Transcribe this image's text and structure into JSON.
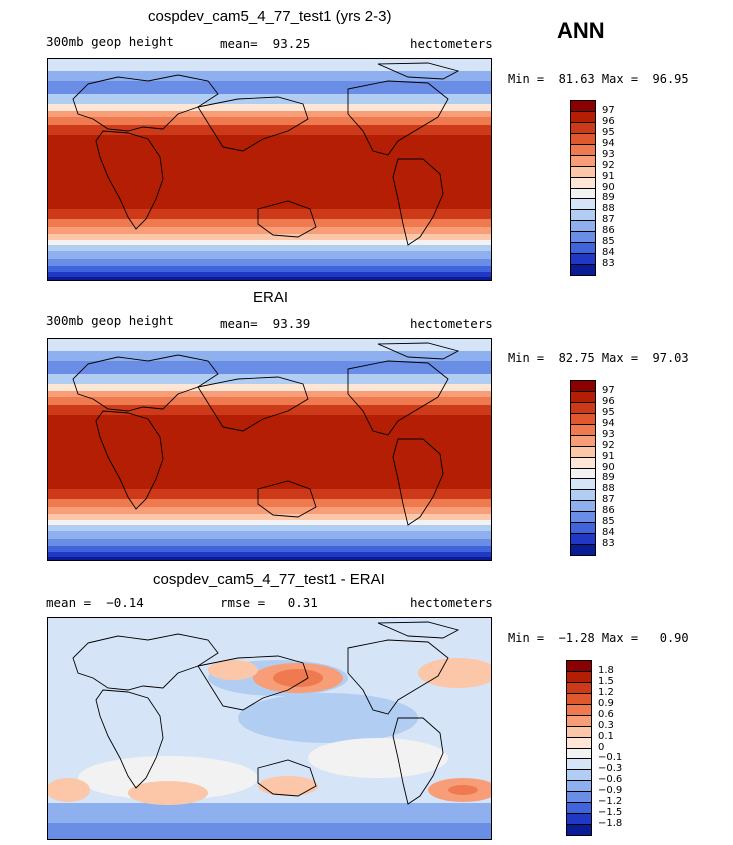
{
  "season": "ANN",
  "panels": [
    {
      "title": "cospdev_cam5_4_77_test1 (yrs 2-3)",
      "left_label": "300mb geop height",
      "center_label": "mean=  93.25",
      "right_label": "hectometers",
      "minmax": "Min =  81.63 Max =  96.95",
      "kind": "field",
      "colorbar": {
        "labels": [
          "97",
          "96",
          "95",
          "94",
          "93",
          "92",
          "91",
          "90",
          "89",
          "88",
          "87",
          "86",
          "85",
          "84",
          "83"
        ],
        "colors": [
          "#8b0000",
          "#b31e05",
          "#cc3a1a",
          "#e0582e",
          "#ef7a50",
          "#f79e78",
          "#fcc6a8",
          "#fde6d6",
          "#f2f2f2",
          "#d6e4f7",
          "#b2cdf2",
          "#8fb0ee",
          "#6a8ee6",
          "#3f64dc",
          "#2038c4",
          "#0a1d96"
        ]
      }
    },
    {
      "title": "ERAI",
      "left_label": "300mb geop height",
      "center_label": "mean=  93.39",
      "right_label": "hectometers",
      "minmax": "Min =  82.75 Max =  97.03",
      "kind": "field",
      "colorbar": {
        "labels": [
          "97",
          "96",
          "95",
          "94",
          "93",
          "92",
          "91",
          "90",
          "89",
          "88",
          "87",
          "86",
          "85",
          "84",
          "83"
        ],
        "colors": [
          "#8b0000",
          "#b31e05",
          "#cc3a1a",
          "#e0582e",
          "#ef7a50",
          "#f79e78",
          "#fcc6a8",
          "#fde6d6",
          "#f2f2f2",
          "#d6e4f7",
          "#b2cdf2",
          "#8fb0ee",
          "#6a8ee6",
          "#3f64dc",
          "#2038c4",
          "#0a1d96"
        ]
      }
    },
    {
      "title": "cospdev_cam5_4_77_test1 - ERAI",
      "left_label": "mean =  −0.14",
      "center_label": "rmse =   0.31",
      "right_label": "hectometers",
      "minmax": "Min =  −1.28 Max =   0.90",
      "kind": "diff",
      "colorbar": {
        "labels": [
          "1.8",
          "1.5",
          "1.2",
          "0.9",
          "0.6",
          "0.3",
          "0.1",
          "0",
          "−0.1",
          "−0.3",
          "−0.6",
          "−0.9",
          "−1.2",
          "−1.5",
          "−1.8"
        ],
        "colors": [
          "#8b0000",
          "#b31e05",
          "#cc3a1a",
          "#e0582e",
          "#ef7a50",
          "#f79e78",
          "#fcc6a8",
          "#fde6d6",
          "#f2f2f2",
          "#d6e4f7",
          "#b2cdf2",
          "#8fb0ee",
          "#6a8ee6",
          "#3f64dc",
          "#2038c4",
          "#0a1d96"
        ]
      }
    }
  ]
}
